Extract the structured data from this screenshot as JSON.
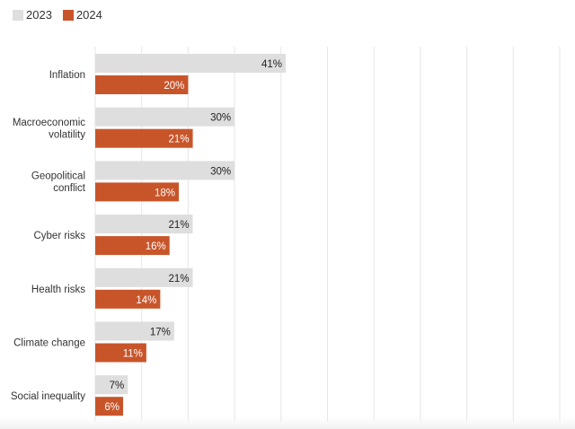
{
  "chart_data": {
    "type": "bar",
    "orientation": "horizontal",
    "categories": [
      [
        "Inflation"
      ],
      [
        "Macroeconomic",
        "volatility"
      ],
      [
        "Geopolitical",
        "conflict"
      ],
      [
        "Cyber risks"
      ],
      [
        "Health risks"
      ],
      [
        "Climate change"
      ],
      [
        "Social inequality"
      ]
    ],
    "series": [
      {
        "name": "2023",
        "color": "#dedede",
        "label_color": "#222222",
        "values": [
          41,
          30,
          30,
          21,
          21,
          17,
          7
        ]
      },
      {
        "name": "2024",
        "color": "#c8552a",
        "label_color": "#ffffff",
        "values": [
          20,
          21,
          18,
          16,
          14,
          11,
          6
        ]
      }
    ],
    "value_suffix": "%",
    "xlim": [
      0,
      100
    ],
    "grid": true,
    "grid_step": 10,
    "legend_placement": "top-left"
  }
}
